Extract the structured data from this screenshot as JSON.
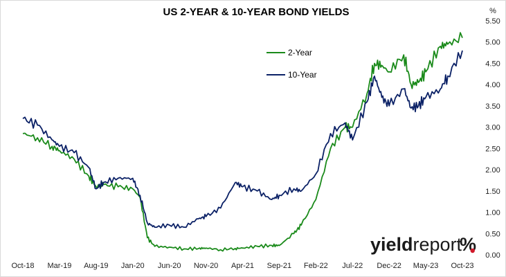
{
  "chart_data": {
    "type": "line",
    "title": "US 2-YEAR & 10-YEAR BOND YIELDS",
    "unit": "%",
    "xlabel": "",
    "ylabel": "",
    "x_tick_labels": [
      "Oct-18",
      "Mar-19",
      "Aug-19",
      "Jan-20",
      "Jun-20",
      "Nov-20",
      "Apr-21",
      "Sep-21",
      "Feb-22",
      "Jul-22",
      "Dec-22",
      "May-23",
      "Oct-23"
    ],
    "y_tick_labels": [
      "0.00",
      "0.50",
      "1.00",
      "1.50",
      "2.00",
      "2.50",
      "3.00",
      "3.50",
      "4.00",
      "4.50",
      "5.00",
      "5.50"
    ],
    "ylim": [
      0,
      5.5
    ],
    "y_axis_side": "right",
    "grid": false,
    "legend_position": "top-right inside plot",
    "x": [
      "Oct-18",
      "Dec-18",
      "Feb-19",
      "Mar-19",
      "May-19",
      "Jul-19",
      "Aug-19",
      "Sep-19",
      "Nov-19",
      "Jan-20",
      "Feb-20",
      "Mar-20",
      "Apr-20",
      "Jun-20",
      "Aug-20",
      "Oct-20",
      "Nov-20",
      "Jan-21",
      "Mar-21",
      "Apr-21",
      "Jun-21",
      "Aug-21",
      "Sep-21",
      "Nov-21",
      "Dec-21",
      "Feb-22",
      "Apr-22",
      "Jun-22",
      "Jul-22",
      "Sep-22",
      "Oct-22",
      "Nov-22",
      "Dec-22",
      "Feb-23",
      "Mar-23",
      "Apr-23",
      "May-23",
      "Jul-23",
      "Aug-23",
      "Oct-23"
    ],
    "series": [
      {
        "name": "2-Year",
        "color": "#1a8a1a",
        "values": [
          2.85,
          2.75,
          2.55,
          2.45,
          2.25,
          1.85,
          1.6,
          1.65,
          1.6,
          1.55,
          1.35,
          0.4,
          0.2,
          0.18,
          0.14,
          0.15,
          0.16,
          0.12,
          0.15,
          0.16,
          0.2,
          0.22,
          0.22,
          0.5,
          0.7,
          1.3,
          2.5,
          3.0,
          3.0,
          3.8,
          4.5,
          4.45,
          4.3,
          4.7,
          4.0,
          4.05,
          4.3,
          4.9,
          4.95,
          5.1
        ]
      },
      {
        "name": "10-Year",
        "color": "#0b2166",
        "values": [
          3.2,
          3.05,
          2.7,
          2.55,
          2.4,
          2.05,
          1.55,
          1.7,
          1.8,
          1.8,
          1.4,
          0.75,
          0.65,
          0.7,
          0.65,
          0.85,
          0.9,
          1.1,
          1.7,
          1.6,
          1.5,
          1.3,
          1.4,
          1.55,
          1.5,
          1.9,
          2.85,
          3.1,
          2.7,
          3.6,
          4.2,
          3.7,
          3.5,
          3.9,
          3.45,
          3.5,
          3.7,
          3.9,
          4.2,
          4.8
        ]
      }
    ],
    "watermark": {
      "bold": "yield",
      "regular": "report",
      "symbol": "%"
    }
  }
}
